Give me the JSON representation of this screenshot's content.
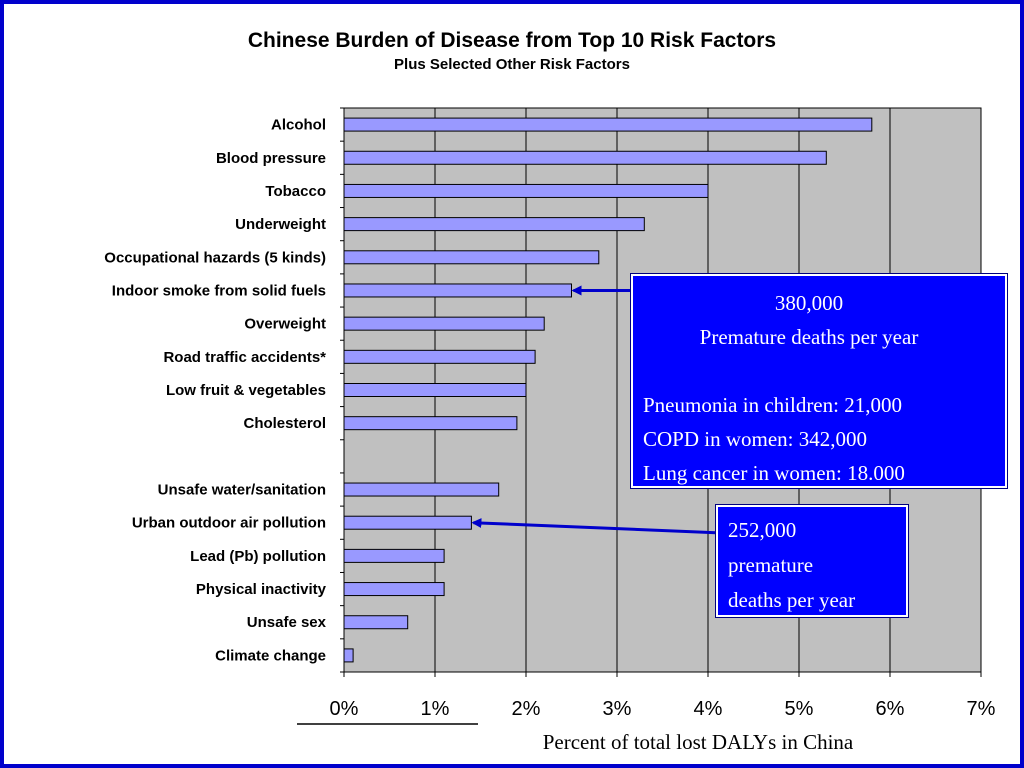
{
  "chart_data": {
    "type": "bar",
    "orientation": "horizontal",
    "title": "Chinese Burden of Disease from Top 10 Risk Factors",
    "subtitle": "Plus Selected Other Risk Factors",
    "xlabel": "Percent of total lost DALYs in China",
    "ylabel": "",
    "xlim": [
      0,
      7
    ],
    "x_ticks": [
      "0%",
      "1%",
      "2%",
      "3%",
      "4%",
      "5%",
      "6%",
      "7%"
    ],
    "grid": "vertical",
    "categories": [
      "Alcohol",
      "Blood pressure",
      "Tobacco",
      "Underweight",
      "Occupational hazards (5 kinds)",
      "Indoor smoke from solid fuels",
      "Overweight",
      "Road traffic accidents*",
      "Low fruit & vegetables",
      "Cholesterol",
      "",
      "Unsafe water/sanitation",
      "Urban outdoor air pollution",
      "Lead (Pb) pollution",
      "Physical inactivity",
      "Unsafe sex",
      "Climate change"
    ],
    "values": [
      5.8,
      5.3,
      4.0,
      3.3,
      2.8,
      2.5,
      2.2,
      2.1,
      2.0,
      1.9,
      null,
      1.7,
      1.4,
      1.1,
      1.1,
      0.7,
      0.1
    ],
    "colors": {
      "bar": "#9999ff",
      "plot_bg": "#c0c0c0",
      "frame": "#0000cc",
      "callout": "#0000ff"
    },
    "annotations": [
      {
        "target": "Indoor smoke from solid fuels",
        "lines": [
          "380,000",
          "Premature deaths per year",
          "",
          "Pneumonia in children: 21,000",
          "COPD in women: 342,000",
          "Lung cancer in women: 18.000"
        ]
      },
      {
        "target": "Urban outdoor air pollution",
        "lines": [
          "252,000",
          "premature",
          "deaths per year"
        ]
      }
    ]
  }
}
